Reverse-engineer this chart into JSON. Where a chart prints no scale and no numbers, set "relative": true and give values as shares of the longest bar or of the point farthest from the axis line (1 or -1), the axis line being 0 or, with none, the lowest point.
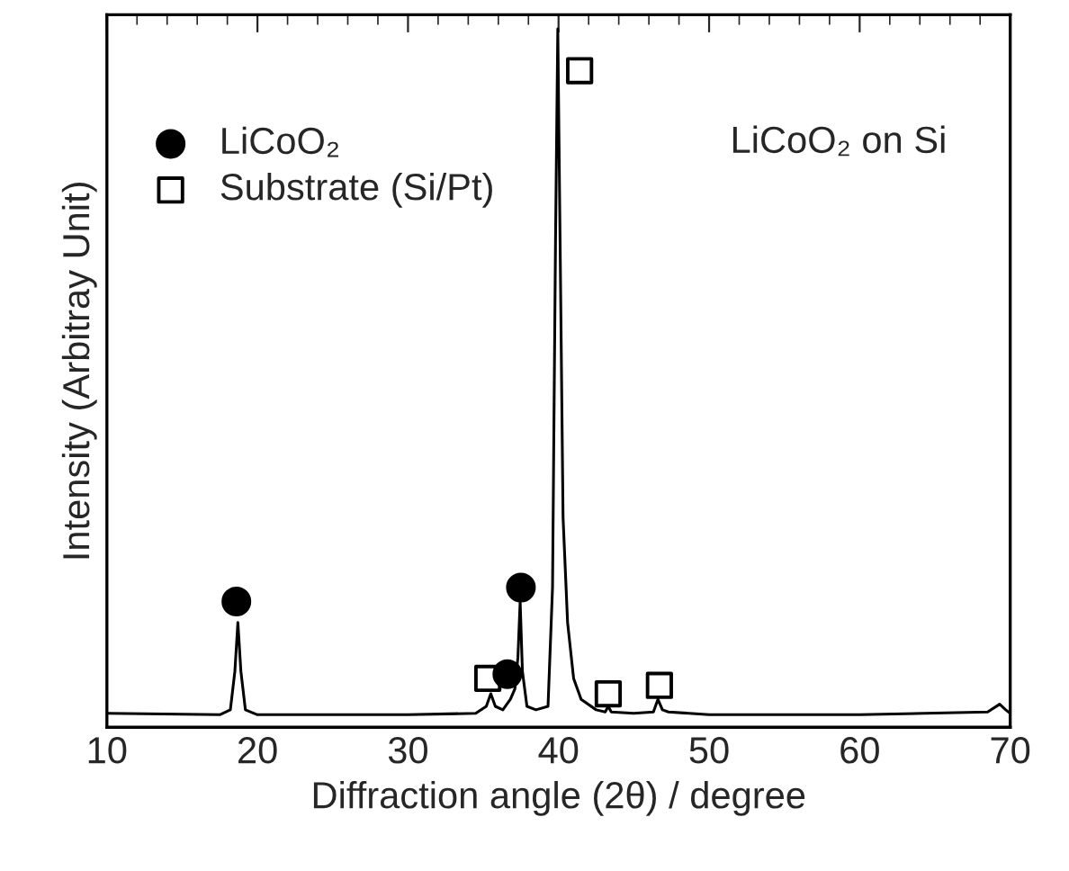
{
  "chart_data": {
    "type": "line",
    "relative": true,
    "xlabel": "Diffraction angle (2θ) / degree",
    "ylabel": "Intensity (Arbitray Unit)",
    "annotations": [
      "LiCoO₂ on Si"
    ],
    "xlim": [
      10,
      70
    ],
    "xticks": [
      10,
      20,
      30,
      40,
      50,
      60,
      70
    ],
    "tick_labels": "x",
    "legend": "top left",
    "grid": false,
    "series": [
      {
        "color": "#000000",
        "marker": "none",
        "x": [
          10,
          17.5,
          18.2,
          18.5,
          18.7,
          18.9,
          19.2,
          20,
          30,
          34.5,
          35.2,
          35.5,
          35.8,
          36.3,
          36.8,
          37.1,
          37.3,
          37.45,
          37.6,
          37.9,
          38.5,
          39.3,
          39.6,
          39.8,
          39.95,
          40.1,
          40.3,
          40.6,
          41.0,
          41.5,
          42.5,
          43.1,
          43.3,
          43.5,
          45,
          46.3,
          46.6,
          46.9,
          47.3,
          50,
          60,
          68.5,
          69.3,
          69.7,
          70
        ],
        "values": [
          0.02,
          0.018,
          0.025,
          0.08,
          0.15,
          0.08,
          0.025,
          0.018,
          0.018,
          0.02,
          0.03,
          0.048,
          0.03,
          0.025,
          0.04,
          0.055,
          0.1,
          0.18,
          0.08,
          0.03,
          0.025,
          0.03,
          0.2,
          0.7,
          1.0,
          0.7,
          0.3,
          0.15,
          0.07,
          0.04,
          0.025,
          0.022,
          0.03,
          0.022,
          0.02,
          0.022,
          0.04,
          0.025,
          0.022,
          0.018,
          0.018,
          0.022,
          0.033,
          0.025,
          0.02
        ]
      },
      {
        "type": "scatter",
        "name": "LiCoO₂",
        "color": "#000000",
        "marker": "circle",
        "x": [
          18.6,
          36.6,
          37.5
        ],
        "values": [
          0.18,
          0.076,
          0.2
        ]
      },
      {
        "type": "scatter",
        "name": "Substrate (Si/Pt)",
        "color": "#000000",
        "marker": "square",
        "x": [
          35.3,
          41.4,
          43.3,
          46.7
        ],
        "values": [
          0.07,
          0.94,
          0.048,
          0.06
        ]
      }
    ]
  }
}
